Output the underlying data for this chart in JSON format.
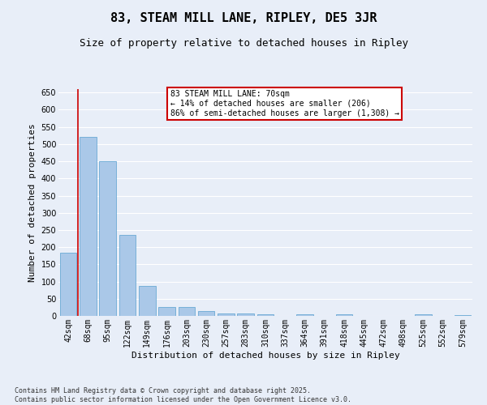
{
  "title": "83, STEAM MILL LANE, RIPLEY, DE5 3JR",
  "subtitle": "Size of property relative to detached houses in Ripley",
  "xlabel": "Distribution of detached houses by size in Ripley",
  "ylabel": "Number of detached properties",
  "categories": [
    "42sqm",
    "68sqm",
    "95sqm",
    "122sqm",
    "149sqm",
    "176sqm",
    "203sqm",
    "230sqm",
    "257sqm",
    "283sqm",
    "310sqm",
    "337sqm",
    "364sqm",
    "391sqm",
    "418sqm",
    "445sqm",
    "472sqm",
    "498sqm",
    "525sqm",
    "552sqm",
    "579sqm"
  ],
  "values": [
    183,
    520,
    450,
    235,
    88,
    27,
    27,
    13,
    8,
    6,
    5,
    0,
    5,
    0,
    5,
    0,
    0,
    0,
    5,
    0,
    3
  ],
  "bar_color": "#aac8e8",
  "bar_edge_color": "#6aaad4",
  "background_color": "#e8eef8",
  "grid_color": "#ffffff",
  "vline_color": "#cc0000",
  "vline_x_value": 0.48,
  "annotation_text": "83 STEAM MILL LANE: 70sqm\n← 14% of detached houses are smaller (206)\n86% of semi-detached houses are larger (1,308) →",
  "annotation_box_color": "#ffffff",
  "annotation_box_edge": "#cc0000",
  "ylim": [
    0,
    660
  ],
  "yticks": [
    0,
    50,
    100,
    150,
    200,
    250,
    300,
    350,
    400,
    450,
    500,
    550,
    600,
    650
  ],
  "footer_line1": "Contains HM Land Registry data © Crown copyright and database right 2025.",
  "footer_line2": "Contains public sector information licensed under the Open Government Licence v3.0.",
  "title_fontsize": 11,
  "subtitle_fontsize": 9,
  "axis_label_fontsize": 8,
  "tick_fontsize": 7,
  "annotation_fontsize": 7,
  "footer_fontsize": 6
}
